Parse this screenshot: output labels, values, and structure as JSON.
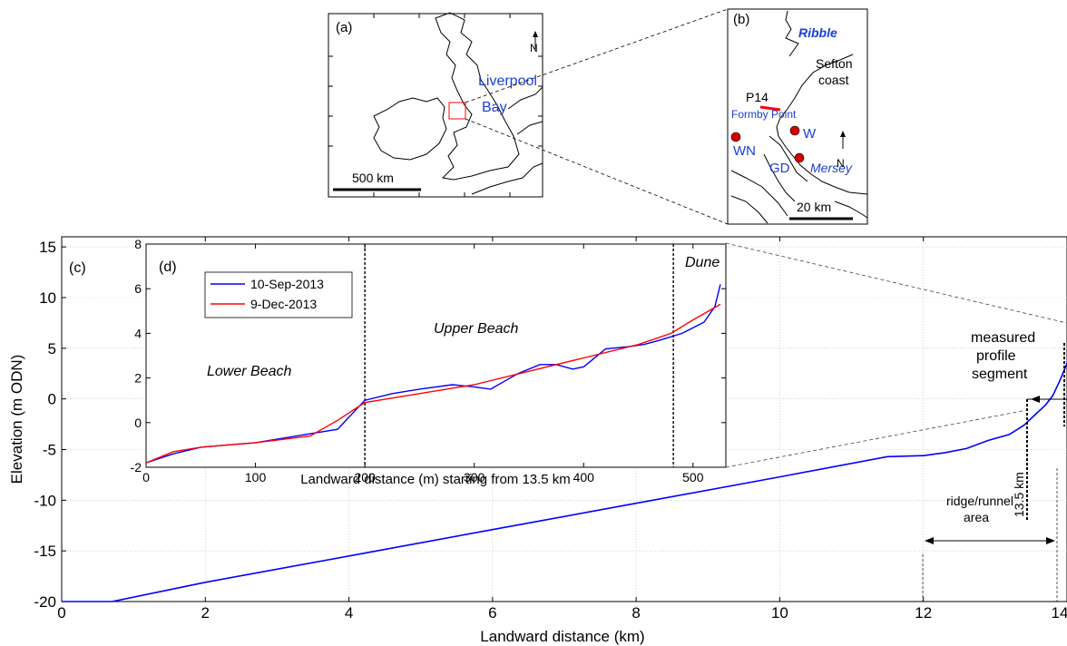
{
  "colors": {
    "sep": "#0000ff",
    "dec": "#ff0000",
    "blue_label": "#1a3fd6",
    "grid": "#bbbbbb",
    "site_marker": "#d40000"
  },
  "panel_a": {
    "label": "(a)",
    "north": "N",
    "scale_label": "500 km",
    "place_label_1": "Liverpool",
    "place_label_2": "Bay"
  },
  "panel_b": {
    "label": "(b)",
    "ribble": "Ribble",
    "sefton_1": "Sefton",
    "sefton_2": "coast",
    "profile": "P14",
    "formby": "Formby Point",
    "w": "W",
    "wn": "WN",
    "gd": "GD",
    "mersey": "Mersey",
    "north": "N",
    "scale_label": "20 km"
  },
  "chart_data": [
    {
      "panel": "(c)",
      "type": "line",
      "xlabel": "Landward distance (km)",
      "ylabel": "Elevation (m ODN)",
      "xlim": [
        0,
        14
      ],
      "ylim": [
        -20,
        16
      ],
      "xticks": [
        "0",
        "2",
        "4",
        "6",
        "8",
        "10",
        "12",
        "14"
      ],
      "yticks": [
        "-20",
        "-15",
        "-10",
        "-5",
        "0",
        "5",
        "10",
        "15"
      ],
      "grid": true,
      "series": [
        {
          "color": "#0000ff",
          "x": [
            0,
            0.7,
            2,
            4,
            6,
            8,
            10,
            11.5,
            12.0,
            12.3,
            12.6,
            12.9,
            13.2,
            13.4,
            13.55,
            13.7,
            13.8,
            13.9,
            14.0,
            14.05,
            14.08
          ],
          "y": [
            -20,
            -20,
            -18.1,
            -15.5,
            -12.9,
            -10.3,
            -7.7,
            -5.7,
            -5.6,
            -5.3,
            -4.9,
            -4.1,
            -3.5,
            -2.6,
            -1.6,
            -0.6,
            0.3,
            1.8,
            3.5,
            7,
            16
          ]
        }
      ],
      "annotations": {
        "measured_1": "measured",
        "measured_2": "profile",
        "measured_3": "segment",
        "marker_13_5": "13.5 km",
        "ridge_1": "ridge/runnel",
        "ridge_2": "area"
      }
    },
    {
      "panel": "(d)",
      "type": "line",
      "xlabel": "Landward distance (m) starting from 13.5 km",
      "ylabel": "",
      "xlim": [
        0,
        530
      ],
      "ylim": [
        -2,
        8
      ],
      "xticks": [
        "0",
        "100",
        "200",
        "300",
        "400",
        "500"
      ],
      "yticks": [
        "-2",
        "0",
        "2",
        "4",
        "6",
        "8"
      ],
      "grid": false,
      "legend_position": "top-left",
      "vlines": [
        200,
        482
      ],
      "zone_labels": [
        "Lower Beach",
        "Upper Beach",
        "Dune"
      ],
      "series": [
        {
          "name": "10-Sep-2013",
          "color": "#0000ff",
          "x": [
            0,
            25,
            50,
            100,
            150,
            175,
            200,
            225,
            250,
            280,
            300,
            315,
            340,
            360,
            375,
            390,
            400,
            420,
            440,
            455,
            470,
            490,
            510,
            520,
            525
          ],
          "y": [
            -1.8,
            -1.4,
            -1.1,
            -0.9,
            -0.5,
            -0.3,
            1.0,
            1.3,
            1.5,
            1.7,
            1.6,
            1.5,
            2.2,
            2.6,
            2.6,
            2.4,
            2.5,
            3.3,
            3.4,
            3.5,
            3.7,
            4.0,
            4.5,
            5.2,
            6.2
          ]
        },
        {
          "name": "9-Dec-2013",
          "color": "#ff0000",
          "x": [
            0,
            25,
            50,
            100,
            150,
            175,
            200,
            250,
            300,
            350,
            400,
            450,
            480,
            500,
            525
          ],
          "y": [
            -1.8,
            -1.3,
            -1.1,
            -0.9,
            -0.6,
            0.1,
            0.9,
            1.3,
            1.7,
            2.3,
            2.9,
            3.5,
            4.0,
            4.6,
            5.3
          ]
        }
      ]
    }
  ]
}
